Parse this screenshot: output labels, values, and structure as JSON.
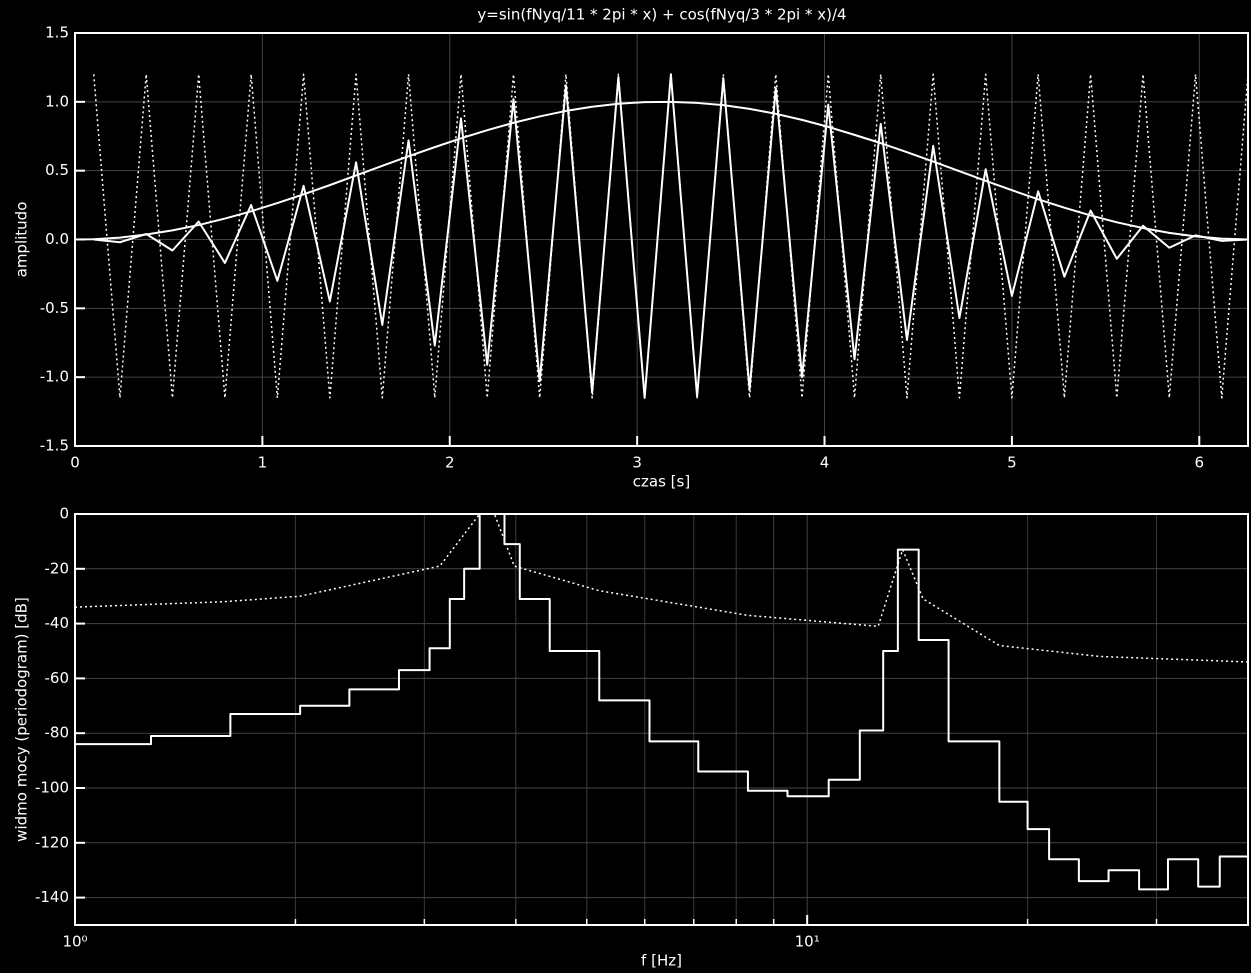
{
  "chart_data": [
    {
      "type": "line",
      "title": "y=sin(fNyq/11 * 2pi * x) + cos(fNyq/3 * 2pi * x)/4",
      "xlabel": "czas [s]",
      "ylabel": "amplitudo",
      "xlim": [
        0,
        6.26
      ],
      "ylim": [
        -1.5,
        1.5
      ],
      "xscale": "linear",
      "xticks": [
        0,
        1,
        2,
        3,
        4,
        5,
        6
      ],
      "yticks": [
        -1.5,
        {
          "value": -1,
          "label": "-1.0"
        },
        -0.5,
        {
          "value": 0,
          "label": "0.0"
        },
        0.5,
        {
          "value": 1,
          "label": "1.0"
        },
        1.5
      ],
      "grid": true,
      "series": [
        {
          "color": "#ffffff",
          "style": "dotted",
          "x": [
            0.1,
            0.24,
            0.38,
            0.52,
            0.66,
            0.8,
            0.94,
            1.08,
            1.22,
            1.36,
            1.5,
            1.64,
            1.78,
            1.92,
            2.06,
            2.2,
            2.34,
            2.48,
            2.62,
            2.76,
            2.9,
            3.04,
            3.18,
            3.32,
            3.46,
            3.6,
            3.74,
            3.88,
            4.02,
            4.16,
            4.3,
            4.44,
            4.58,
            4.72,
            4.86,
            5.0,
            5.14,
            5.28,
            5.42,
            5.56,
            5.7,
            5.84,
            5.98,
            6.12,
            6.26
          ],
          "values": [
            1.2,
            -1.15,
            1.2,
            -1.15,
            1.2,
            -1.15,
            1.2,
            -1.15,
            1.2,
            -1.15,
            1.2,
            -1.15,
            1.2,
            -1.15,
            1.2,
            -1.15,
            1.2,
            -1.15,
            1.2,
            -1.15,
            1.2,
            -1.15,
            1.2,
            -1.15,
            1.2,
            -1.15,
            1.2,
            -1.15,
            1.2,
            -1.15,
            1.2,
            -1.15,
            1.2,
            -1.15,
            1.2,
            -1.15,
            1.2,
            -1.15,
            1.2,
            -1.15,
            1.2,
            -1.15,
            1.2,
            -1.15,
            1.2
          ]
        },
        {
          "color": "#ffffff",
          "style": "solid",
          "x": [
            0.1,
            0.24,
            0.38,
            0.52,
            0.66,
            0.8,
            0.94,
            1.08,
            1.22,
            1.36,
            1.5,
            1.64,
            1.78,
            1.92,
            2.06,
            2.2,
            2.34,
            2.48,
            2.62,
            2.76,
            2.9,
            3.04,
            3.18,
            3.32,
            3.46,
            3.6,
            3.74,
            3.88,
            4.02,
            4.16,
            4.3,
            4.44,
            4.58,
            4.72,
            4.86,
            5.0,
            5.14,
            5.28,
            5.42,
            5.56,
            5.7,
            5.84,
            5.98,
            6.12,
            6.26
          ],
          "values": [
            0,
            -0.02,
            0.04,
            -0.08,
            0.13,
            -0.17,
            0.25,
            -0.3,
            0.39,
            -0.45,
            0.56,
            -0.62,
            0.72,
            -0.77,
            0.88,
            -0.91,
            1.02,
            -1.03,
            1.12,
            -1.11,
            1.18,
            -1.15,
            1.2,
            -1.14,
            1.17,
            -1.09,
            1.1,
            -1,
            0.98,
            -0.87,
            0.84,
            -0.73,
            0.68,
            -0.57,
            0.51,
            -0.41,
            0.35,
            -0.27,
            0.21,
            -0.14,
            0.1,
            -0.06,
            0.03,
            -0.01,
            0
          ]
        },
        {
          "color": "#ffffff",
          "style": "solid",
          "x": [
            0,
            0.1,
            0.24,
            0.38,
            0.52,
            0.66,
            0.8,
            0.94,
            1.08,
            1.22,
            1.36,
            1.5,
            1.64,
            1.78,
            1.92,
            2.06,
            2.2,
            2.34,
            2.48,
            2.62,
            2.76,
            2.9,
            3.04,
            3.18,
            3.32,
            3.46,
            3.6,
            3.74,
            3.88,
            4.02,
            4.16,
            4.3,
            4.44,
            4.58,
            4.72,
            4.86,
            5.0,
            5.14,
            5.28,
            5.42,
            5.56,
            5.7,
            5.84,
            5.98,
            6.12,
            6.26
          ],
          "values": [
            0,
            0.002,
            0.014,
            0.036,
            0.066,
            0.105,
            0.152,
            0.205,
            0.265,
            0.328,
            0.395,
            0.465,
            0.535,
            0.604,
            0.671,
            0.735,
            0.794,
            0.848,
            0.894,
            0.934,
            0.964,
            0.986,
            0.998,
            1,
            0.992,
            0.976,
            0.949,
            0.913,
            0.869,
            0.818,
            0.76,
            0.7,
            0.634,
            0.566,
            0.496,
            0.426,
            0.358,
            0.292,
            0.231,
            0.175,
            0.125,
            0.083,
            0.048,
            0.023,
            0.006,
            0
          ]
        }
      ]
    },
    {
      "type": "line",
      "xlabel": "f [Hz]",
      "ylabel": "widmo mocy (periodogram) [dB]",
      "xlim": [
        1,
        40
      ],
      "ylim": [
        -150,
        0
      ],
      "xscale": "log",
      "xticks": [
        {
          "value": 1,
          "label": "10⁰"
        },
        {
          "value": 10,
          "label": "10¹"
        }
      ],
      "xminor": [
        2,
        3,
        4,
        5,
        6,
        7,
        8,
        9,
        20,
        30
      ],
      "yticks": [
        -140,
        -120,
        -100,
        -80,
        -60,
        -40,
        -20,
        0
      ],
      "grid": true,
      "series": [
        {
          "color": "#ffffff",
          "style": "dotted",
          "x": [
            1,
            1.6,
            2.03,
            3.15,
            3.57,
            3.74,
            3.98,
            5.2,
            8.3,
            12.5,
            13.5,
            14.4,
            18.3,
            25.1,
            40
          ],
          "values": [
            -34,
            -32,
            -30,
            -19,
            0,
            0,
            -19,
            -28,
            -37,
            -41,
            -13,
            -31,
            -48,
            -52,
            -54
          ]
        },
        {
          "color": "#ffffff",
          "style": "step",
          "x": [
            1,
            1.27,
            1.63,
            2.03,
            2.37,
            2.77,
            3.05,
            3.25,
            3.4,
            3.57,
            3.74,
            3.86,
            4.05,
            4.45,
            5.2,
            6.09,
            7.1,
            8.3,
            9.4,
            10.7,
            11.8,
            12.7,
            13.3,
            13.7,
            14.2,
            15.6,
            18.3,
            20,
            21.4,
            23.5,
            25.8,
            28.4,
            31.1,
            34.2,
            36.6,
            40
          ],
          "values": [
            -84,
            -81,
            -73,
            -70,
            -64,
            -57,
            -49,
            -31,
            -20,
            0,
            0,
            -11,
            -31,
            -50,
            -68,
            -83,
            -94,
            -101,
            -103,
            -97,
            -79,
            -50,
            -13,
            -13,
            -46,
            -83,
            -105,
            -115,
            -126,
            -134,
            -130,
            -137,
            -126,
            -136,
            -125,
            -139
          ]
        }
      ]
    }
  ]
}
